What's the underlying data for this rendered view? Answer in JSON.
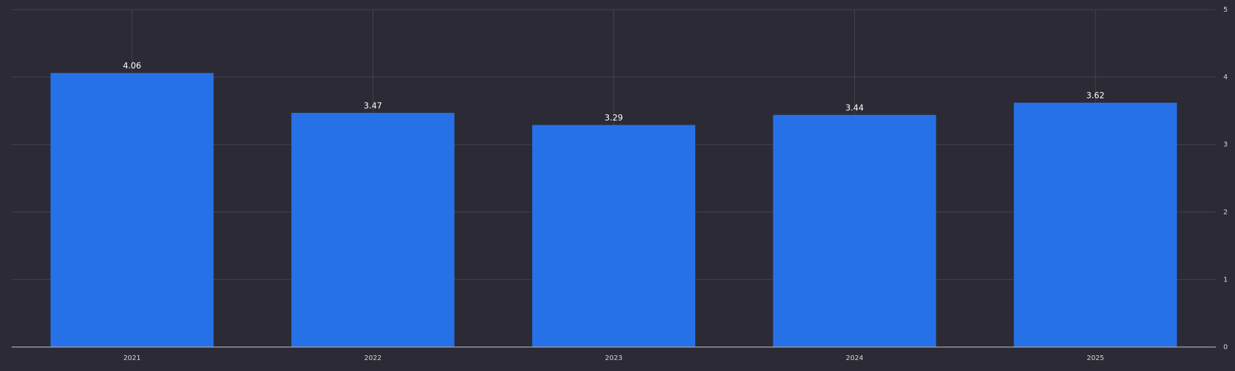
{
  "chart_data": {
    "type": "bar",
    "categories": [
      "2021",
      "2022",
      "2023",
      "2024",
      "2025"
    ],
    "values": [
      4.06,
      3.47,
      3.29,
      3.44,
      3.62
    ],
    "color": "#2671e8",
    "ylim": [
      0,
      5
    ],
    "yticks": [
      0,
      1,
      2,
      3,
      4,
      5
    ],
    "grid": true
  }
}
